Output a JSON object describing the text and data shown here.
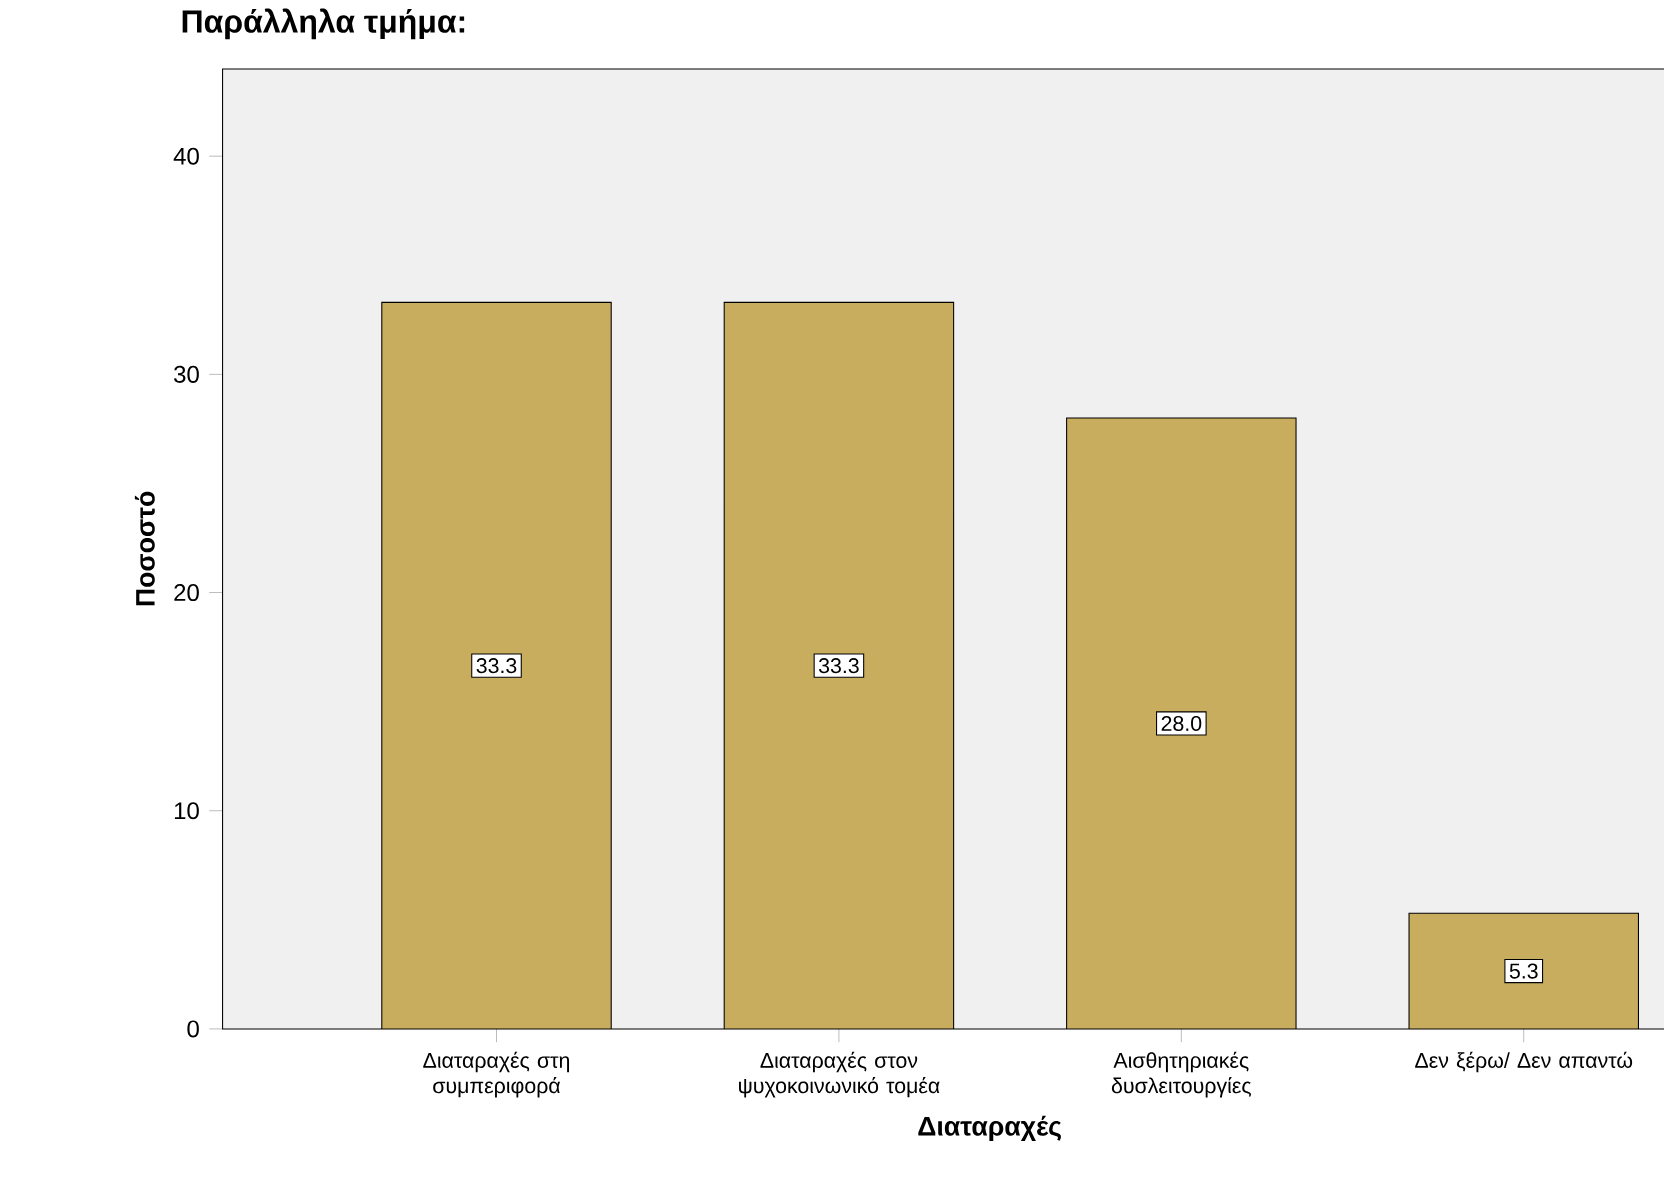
{
  "chart_data": {
    "type": "bar",
    "title": "Παράλληλα τμήμα:",
    "xlabel": "Διαταραχές",
    "ylabel": "Ποσοστό",
    "categories": [
      "Διαταραχές στη συμπεριφορά",
      "Διαταραχές στον ψυχοκοινωνικό τομέα",
      "Αισθητηριακές δυσλειτουργίες",
      "Δεν ξέρω/ Δεν απαντώ"
    ],
    "values": [
      33.3,
      33.3,
      28.0,
      5.3
    ],
    "value_labels": [
      "33.3",
      "33.3",
      "28.0",
      "5.3"
    ],
    "color": "#c9ad5f",
    "ylim": [
      0,
      44
    ],
    "yticks": [
      0,
      10,
      20,
      30,
      40
    ],
    "grid": false
  }
}
